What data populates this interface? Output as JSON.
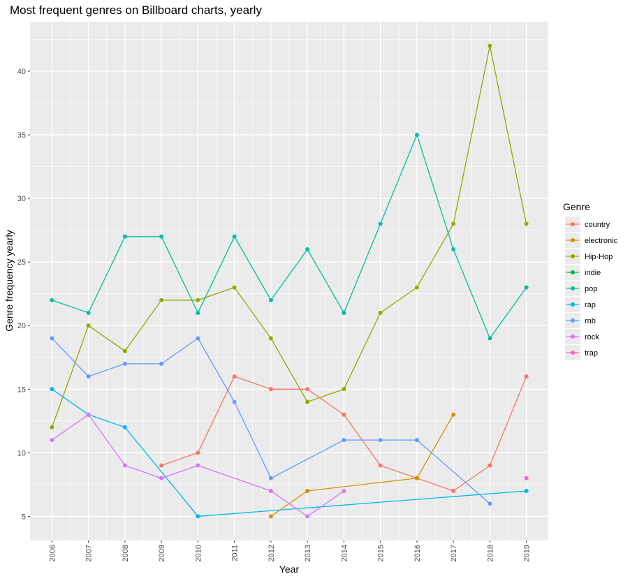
{
  "chart_data": {
    "type": "line",
    "title": "Most frequent genres on Billboard charts, yearly",
    "xlabel": "Year",
    "ylabel": "Genre frequency yearly",
    "x": [
      2006,
      2007,
      2008,
      2009,
      2010,
      2011,
      2012,
      2013,
      2014,
      2015,
      2016,
      2017,
      2018,
      2019
    ],
    "xlim": [
      2005.4,
      2019.6
    ],
    "ylim": [
      3.1,
      43.9
    ],
    "yticks": [
      5,
      10,
      15,
      20,
      25,
      30,
      35,
      40
    ],
    "grid": true,
    "legend": {
      "title": "Genre",
      "position": "right"
    },
    "series": [
      {
        "name": "country",
        "color": "#F8766D",
        "values": [
          null,
          null,
          null,
          9,
          10,
          16,
          15,
          15,
          13,
          9,
          8,
          7,
          9,
          16
        ]
      },
      {
        "name": "electronic",
        "color": "#D39200",
        "values": [
          null,
          null,
          null,
          null,
          null,
          null,
          5,
          7,
          null,
          null,
          8,
          13,
          null,
          null
        ]
      },
      {
        "name": "Hip-Hop",
        "color": "#93AA00",
        "values": [
          12,
          20,
          18,
          22,
          22,
          23,
          19,
          14,
          15,
          21,
          23,
          28,
          42,
          28
        ]
      },
      {
        "name": "indie",
        "color": "#00BA38",
        "values": [
          null,
          null,
          null,
          null,
          null,
          null,
          null,
          null,
          null,
          null,
          null,
          null,
          null,
          null
        ]
      },
      {
        "name": "pop",
        "color": "#00C19F",
        "values": [
          22,
          21,
          27,
          27,
          21,
          27,
          22,
          26,
          21,
          28,
          35,
          26,
          19,
          23
        ]
      },
      {
        "name": "rap",
        "color": "#00B9E3",
        "values": [
          15,
          13,
          12,
          null,
          5,
          null,
          null,
          null,
          null,
          null,
          null,
          null,
          null,
          7
        ]
      },
      {
        "name": "rnb",
        "color": "#619CFF",
        "values": [
          19,
          16,
          17,
          17,
          19,
          14,
          8,
          null,
          11,
          11,
          11,
          null,
          6,
          null
        ]
      },
      {
        "name": "rock",
        "color": "#DB72FB",
        "values": [
          11,
          13,
          9,
          8,
          9,
          null,
          7,
          5,
          7,
          null,
          null,
          null,
          null,
          null
        ]
      },
      {
        "name": "trap",
        "color": "#FF61C3",
        "values": [
          null,
          null,
          null,
          null,
          null,
          null,
          null,
          null,
          null,
          null,
          null,
          null,
          null,
          8
        ]
      }
    ]
  }
}
